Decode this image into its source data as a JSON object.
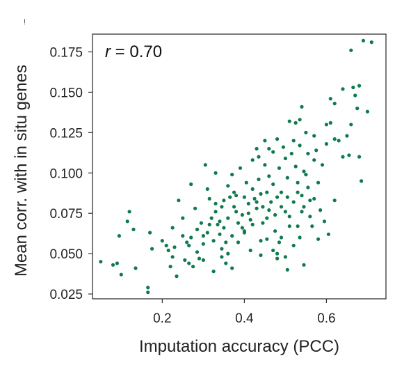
{
  "colors": {
    "point": "#0f7a4d",
    "axis": "#333333",
    "text": "#222222"
  },
  "chart_data": {
    "type": "scatter",
    "xlabel": "Imputation accuracy (PCC)",
    "ylabel": "Mean corr. with in situ genes",
    "annotation": {
      "var": "r",
      "rest": " = 0.70"
    },
    "stray_mark": "!",
    "xlim": [
      0.03,
      0.745
    ],
    "ylim": [
      0.022,
      0.186
    ],
    "xticks": [
      0.2,
      0.4,
      0.6
    ],
    "xtick_labels": [
      "0.2",
      "0.4",
      "0.6"
    ],
    "yticks": [
      0.025,
      0.05,
      0.075,
      0.1,
      0.125,
      0.15,
      0.175
    ],
    "ytick_labels": [
      "0.025",
      "0.050",
      "0.075",
      "0.100",
      "0.125",
      "0.150",
      "0.175"
    ],
    "grid": false,
    "legend": "none",
    "series": [
      {
        "points": [
          [
            0.05,
            0.045
          ],
          [
            0.08,
            0.043
          ],
          [
            0.09,
            0.044
          ],
          [
            0.1,
            0.037
          ],
          [
            0.095,
            0.061
          ],
          [
            0.115,
            0.07
          ],
          [
            0.12,
            0.076
          ],
          [
            0.13,
            0.065
          ],
          [
            0.135,
            0.041
          ],
          [
            0.165,
            0.029
          ],
          [
            0.165,
            0.026
          ],
          [
            0.17,
            0.063
          ],
          [
            0.175,
            0.053
          ],
          [
            0.2,
            0.058
          ],
          [
            0.21,
            0.055
          ],
          [
            0.215,
            0.052
          ],
          [
            0.22,
            0.042
          ],
          [
            0.225,
            0.066
          ],
          [
            0.225,
            0.048
          ],
          [
            0.23,
            0.054
          ],
          [
            0.235,
            0.036
          ],
          [
            0.24,
            0.083
          ],
          [
            0.25,
            0.061
          ],
          [
            0.255,
            0.046
          ],
          [
            0.26,
            0.057
          ],
          [
            0.265,
            0.044
          ],
          [
            0.27,
            0.06
          ],
          [
            0.275,
            0.042
          ],
          [
            0.28,
            0.078
          ],
          [
            0.285,
            0.051
          ],
          [
            0.29,
            0.047
          ],
          [
            0.295,
            0.069
          ],
          [
            0.3,
            0.056
          ],
          [
            0.3,
            0.046
          ],
          [
            0.305,
            0.105
          ],
          [
            0.31,
            0.09
          ],
          [
            0.31,
            0.063
          ],
          [
            0.315,
            0.068
          ],
          [
            0.32,
            0.072
          ],
          [
            0.325,
            0.058
          ],
          [
            0.325,
            0.039
          ],
          [
            0.33,
            0.1
          ],
          [
            0.33,
            0.076
          ],
          [
            0.335,
            0.068
          ],
          [
            0.34,
            0.07
          ],
          [
            0.34,
            0.062
          ],
          [
            0.345,
            0.053
          ],
          [
            0.345,
            0.048
          ],
          [
            0.35,
            0.083
          ],
          [
            0.35,
            0.066
          ],
          [
            0.355,
            0.057
          ],
          [
            0.355,
            0.044
          ],
          [
            0.36,
            0.072
          ],
          [
            0.36,
            0.05
          ],
          [
            0.365,
            0.085
          ],
          [
            0.37,
            0.061
          ],
          [
            0.37,
            0.041
          ],
          [
            0.375,
            0.088
          ],
          [
            0.375,
            0.079
          ],
          [
            0.38,
            0.076
          ],
          [
            0.385,
            0.069
          ],
          [
            0.385,
            0.057
          ],
          [
            0.39,
            0.103
          ],
          [
            0.395,
            0.074
          ],
          [
            0.4,
            0.085
          ],
          [
            0.4,
            0.063
          ],
          [
            0.405,
            0.094
          ],
          [
            0.41,
            0.081
          ],
          [
            0.41,
            0.075
          ],
          [
            0.415,
            0.071
          ],
          [
            0.415,
            0.052
          ],
          [
            0.42,
            0.09
          ],
          [
            0.42,
            0.068
          ],
          [
            0.425,
            0.084
          ],
          [
            0.43,
            0.082
          ],
          [
            0.43,
            0.078
          ],
          [
            0.435,
            0.11
          ],
          [
            0.435,
            0.096
          ],
          [
            0.44,
            0.087
          ],
          [
            0.44,
            0.058
          ],
          [
            0.445,
            0.079
          ],
          [
            0.445,
            0.069
          ],
          [
            0.45,
            0.12
          ],
          [
            0.45,
            0.105
          ],
          [
            0.455,
            0.088
          ],
          [
            0.455,
            0.059
          ],
          [
            0.46,
            0.098
          ],
          [
            0.46,
            0.077
          ],
          [
            0.465,
            0.082
          ],
          [
            0.47,
            0.113
          ],
          [
            0.47,
            0.093
          ],
          [
            0.475,
            0.074
          ],
          [
            0.475,
            0.064
          ],
          [
            0.48,
            0.121
          ],
          [
            0.48,
            0.085
          ],
          [
            0.48,
            0.05
          ],
          [
            0.485,
            0.103
          ],
          [
            0.485,
            0.057
          ],
          [
            0.49,
            0.088
          ],
          [
            0.49,
            0.079
          ],
          [
            0.495,
            0.116
          ],
          [
            0.5,
            0.109
          ],
          [
            0.5,
            0.076
          ],
          [
            0.505,
            0.097
          ],
          [
            0.505,
            0.085
          ],
          [
            0.51,
            0.132
          ],
          [
            0.51,
            0.073
          ],
          [
            0.515,
            0.112
          ],
          [
            0.52,
            0.082
          ],
          [
            0.52,
            0.055
          ],
          [
            0.525,
            0.131
          ],
          [
            0.525,
            0.104
          ],
          [
            0.53,
            0.094
          ],
          [
            0.53,
            0.067
          ],
          [
            0.535,
            0.133
          ],
          [
            0.535,
            0.117
          ],
          [
            0.54,
            0.086
          ],
          [
            0.54,
            0.076
          ],
          [
            0.545,
            0.101
          ],
          [
            0.545,
            0.079
          ],
          [
            0.55,
            0.125
          ],
          [
            0.555,
            0.112
          ],
          [
            0.555,
            0.091
          ],
          [
            0.56,
            0.083
          ],
          [
            0.565,
            0.067
          ],
          [
            0.57,
            0.108
          ],
          [
            0.575,
            0.114
          ],
          [
            0.58,
            0.094
          ],
          [
            0.585,
            0.077
          ],
          [
            0.595,
            0.07
          ],
          [
            0.6,
            0.118
          ],
          [
            0.605,
            0.062
          ],
          [
            0.61,
            0.131
          ],
          [
            0.62,
            0.083
          ],
          [
            0.63,
            0.12
          ],
          [
            0.64,
            0.11
          ],
          [
            0.65,
            0.123
          ],
          [
            0.655,
            0.111
          ],
          [
            0.66,
            0.176
          ],
          [
            0.665,
            0.153
          ],
          [
            0.67,
            0.148
          ],
          [
            0.675,
            0.14
          ],
          [
            0.68,
            0.11
          ],
          [
            0.685,
            0.095
          ],
          [
            0.69,
            0.182
          ],
          [
            0.7,
            0.138
          ],
          [
            0.71,
            0.181
          ],
          [
            0.61,
            0.146
          ],
          [
            0.62,
            0.143
          ],
          [
            0.57,
            0.123
          ],
          [
            0.47,
            0.052
          ],
          [
            0.49,
            0.06
          ],
          [
            0.44,
            0.049
          ],
          [
            0.38,
            0.086
          ],
          [
            0.36,
            0.092
          ],
          [
            0.53,
            0.088
          ],
          [
            0.56,
            0.073
          ],
          [
            0.58,
            0.059
          ],
          [
            0.5,
            0.048
          ],
          [
            0.51,
            0.067
          ],
          [
            0.4,
            0.064
          ],
          [
            0.42,
            0.108
          ],
          [
            0.46,
            0.115
          ],
          [
            0.54,
            0.141
          ],
          [
            0.48,
            0.047
          ],
          [
            0.33,
            0.081
          ],
          [
            0.3,
            0.061
          ],
          [
            0.27,
            0.093
          ],
          [
            0.25,
            0.072
          ],
          [
            0.37,
            0.099
          ],
          [
            0.43,
            0.115
          ],
          [
            0.52,
            0.12
          ],
          [
            0.55,
            0.099
          ],
          [
            0.57,
            0.084
          ],
          [
            0.6,
            0.13
          ],
          [
            0.62,
            0.121
          ],
          [
            0.64,
            0.152
          ],
          [
            0.66,
            0.13
          ],
          [
            0.68,
            0.154
          ],
          [
            0.59,
            0.105
          ],
          [
            0.505,
            0.04
          ],
          [
            0.535,
            0.06
          ],
          [
            0.545,
            0.043
          ],
          [
            0.455,
            0.072
          ],
          [
            0.395,
            0.066
          ],
          [
            0.345,
            0.079
          ],
          [
            0.315,
            0.084
          ],
          [
            0.285,
            0.065
          ],
          [
            0.265,
            0.055
          ]
        ]
      }
    ]
  }
}
